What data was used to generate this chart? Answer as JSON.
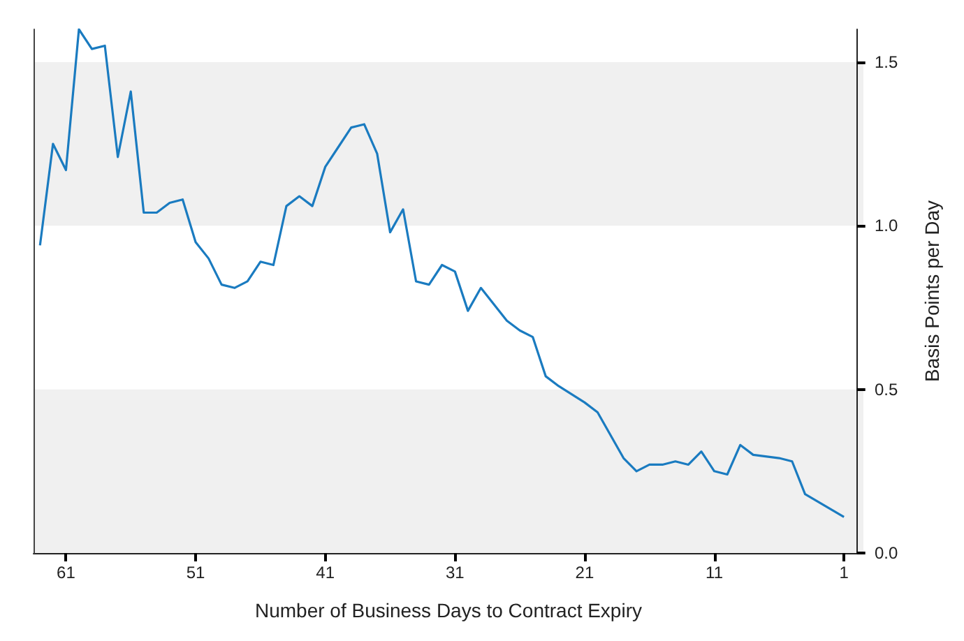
{
  "chart_data": {
    "type": "line",
    "xlabel": "Number of Business Days to Contract Expiry",
    "ylabel": "Basis Points per Day",
    "x": [
      63,
      62,
      61,
      60,
      59,
      58,
      57,
      56,
      55,
      54,
      53,
      52,
      51,
      50,
      49,
      48,
      47,
      46,
      45,
      44,
      43,
      42,
      41,
      40,
      39,
      38,
      37,
      36,
      35,
      34,
      33,
      32,
      31,
      30,
      29,
      27,
      26,
      25,
      24,
      23,
      21,
      20,
      18,
      17,
      16,
      15,
      14,
      13,
      12,
      11,
      10,
      9,
      8,
      6,
      5,
      4,
      1
    ],
    "series": [
      {
        "color": "#1a7bc0",
        "values": [
          0.94,
          1.25,
          1.17,
          1.6,
          1.54,
          1.55,
          1.21,
          1.41,
          1.04,
          1.04,
          1.07,
          1.08,
          0.95,
          0.9,
          0.82,
          0.81,
          0.83,
          0.89,
          0.88,
          1.06,
          1.09,
          1.06,
          1.18,
          1.24,
          1.3,
          1.31,
          1.22,
          0.98,
          1.05,
          0.83,
          0.82,
          0.88,
          0.86,
          0.74,
          0.81,
          0.71,
          0.68,
          0.66,
          0.54,
          0.51,
          0.46,
          0.43,
          0.29,
          0.25,
          0.27,
          0.27,
          0.28,
          0.27,
          0.31,
          0.25,
          0.24,
          0.33,
          0.3,
          0.29,
          0.28,
          0.18,
          0.11
        ]
      }
    ],
    "xlim": [
      63.5,
      -0.5
    ],
    "xticks": [
      61,
      51,
      41,
      31,
      21,
      11,
      1
    ],
    "ylim": [
      0,
      1.6
    ],
    "yticks": [
      {
        "value": 0,
        "label": "0.0"
      },
      0.5,
      {
        "value": 1,
        "label": "1.0"
      },
      1.5
    ],
    "bands": [
      {
        "axis": "y",
        "from": 0,
        "to": 0.5,
        "color": "#f0f0f0"
      },
      {
        "axis": "y",
        "from": 1,
        "to": 1.5,
        "color": "#f0f0f0"
      }
    ],
    "grid": false,
    "marker": "none",
    "line_style": "solid"
  }
}
